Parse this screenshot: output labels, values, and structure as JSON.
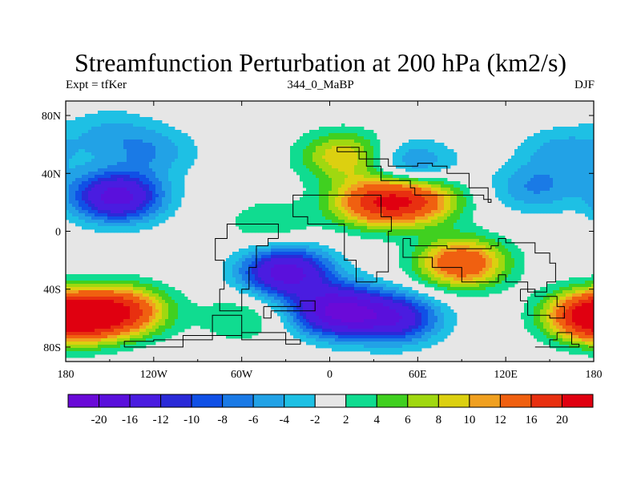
{
  "header": {
    "title": "Streamfunction Perturbation at 200 hPa (km2/s)",
    "left_label": "Expt = tfKer",
    "center_label": "344_0_MaBP",
    "right_label": "DJF"
  },
  "chart_data": {
    "type": "heatmap",
    "title": "Streamfunction Perturbation at 200 hPa (km2/s)",
    "xlabel": "",
    "ylabel": "",
    "xlim": [
      -180,
      180
    ],
    "ylim": [
      -90,
      90
    ],
    "x_ticks": [
      {
        "value": -180,
        "label": "180"
      },
      {
        "value": -120,
        "label": "120W"
      },
      {
        "value": -60,
        "label": "60W"
      },
      {
        "value": 0,
        "label": "0"
      },
      {
        "value": 60,
        "label": "60E"
      },
      {
        "value": 120,
        "label": "120E"
      },
      {
        "value": 180,
        "label": "180"
      }
    ],
    "y_ticks": [
      {
        "value": 80,
        "label": "80N"
      },
      {
        "value": 40,
        "label": "40N"
      },
      {
        "value": 0,
        "label": "0"
      },
      {
        "value": -40,
        "label": "40S"
      },
      {
        "value": -80,
        "label": "80S"
      }
    ],
    "contour_levels": [
      -20,
      -16,
      -12,
      -10,
      -8,
      -6,
      -4,
      -2,
      2,
      4,
      6,
      8,
      10,
      12,
      16,
      20
    ],
    "colorbar_labels": [
      "-20",
      "-16",
      "-12",
      "-10",
      "-8",
      "-6",
      "-4",
      "-2",
      "2",
      "4",
      "6",
      "8",
      "10",
      "12",
      "16",
      "20"
    ],
    "colors": [
      "#6a0ad8",
      "#5a10dc",
      "#4a1ce0",
      "#2a2ad8",
      "#1050e6",
      "#1a7ae6",
      "#22a2e6",
      "#1ec0e4",
      "#e6e6e6",
      "#10dc90",
      "#40d020",
      "#a0d810",
      "#dcd010",
      "#f0a020",
      "#f06010",
      "#e83010",
      "#e00010"
    ],
    "field_centers": [
      {
        "lon": -145,
        "lat": 24,
        "value": -18
      },
      {
        "lon": -120,
        "lat": 55,
        "value": -5
      },
      {
        "lon": -150,
        "lat": 68,
        "value": -4
      },
      {
        "lon": 30,
        "lat": 20,
        "value": 15
      },
      {
        "lon": 60,
        "lat": 22,
        "value": 14
      },
      {
        "lon": 10,
        "lat": 52,
        "value": 10
      },
      {
        "lon": 55,
        "lat": 45,
        "value": -8
      },
      {
        "lon": 140,
        "lat": 30,
        "value": -6
      },
      {
        "lon": 160,
        "lat": 55,
        "value": -5
      },
      {
        "lon": -30,
        "lat": -28,
        "value": -18
      },
      {
        "lon": 5,
        "lat": -55,
        "value": -20
      },
      {
        "lon": 45,
        "lat": -60,
        "value": -14
      },
      {
        "lon": 90,
        "lat": -22,
        "value": 16
      },
      {
        "lon": 175,
        "lat": -58,
        "value": 14
      },
      {
        "lon": -140,
        "lat": -55,
        "value": 16
      },
      {
        "lon": -170,
        "lat": -60,
        "value": 14
      },
      {
        "lon": -40,
        "lat": 5,
        "value": 4
      },
      {
        "lon": -60,
        "lat": -60,
        "value": 4
      }
    ]
  }
}
